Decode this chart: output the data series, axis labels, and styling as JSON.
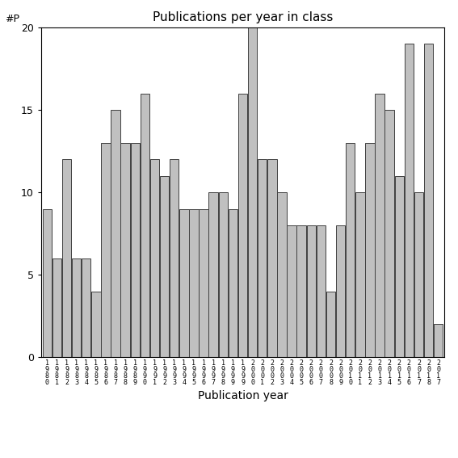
{
  "title": "Publications per year in class",
  "xlabel": "Publication year",
  "ylabel": "#P",
  "bar_color": "#c0c0c0",
  "edge_color": "#404040",
  "ylim": [
    0,
    20
  ],
  "yticks": [
    0,
    5,
    10,
    15,
    20
  ],
  "tick_labels_raw": [
    "1980",
    "1981",
    "1982",
    "1983",
    "1984",
    "1985",
    "1986",
    "1987",
    "1988",
    "1989",
    "1990",
    "1991",
    "1992",
    "1993",
    "1994",
    "1995",
    "1996",
    "1997",
    "1998",
    "1999",
    "1999",
    "2000",
    "2001",
    "2002",
    "2003",
    "2004",
    "2005",
    "2006",
    "2007",
    "2008",
    "2009",
    "2010",
    "2011",
    "2012",
    "2013",
    "2014",
    "2015",
    "2016",
    "2017",
    "2018",
    "2017"
  ],
  "values": [
    9,
    6,
    12,
    6,
    6,
    4,
    13,
    15,
    13,
    13,
    16,
    12,
    11,
    12,
    9,
    9,
    9,
    10,
    10,
    9,
    16,
    20,
    12,
    12,
    10,
    8,
    8,
    8,
    8,
    4,
    8,
    13,
    10,
    13,
    16,
    15,
    11,
    19,
    10,
    19,
    2
  ]
}
